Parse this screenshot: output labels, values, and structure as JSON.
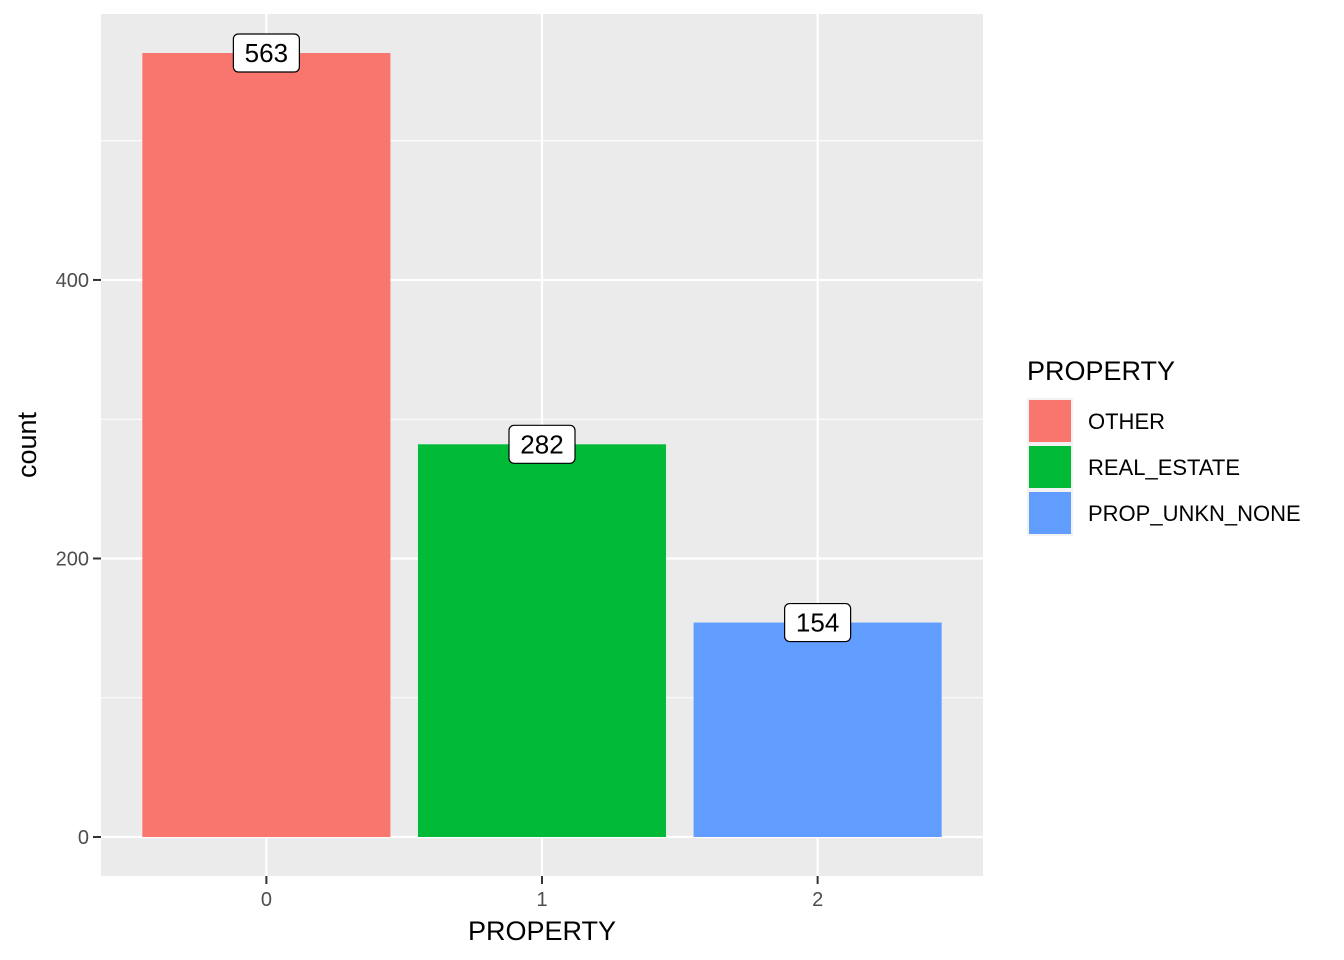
{
  "chart_data": {
    "type": "bar",
    "categories": [
      "0",
      "1",
      "2"
    ],
    "values": [
      563,
      282,
      154
    ],
    "data_labels": [
      "563",
      "282",
      "154"
    ],
    "fill_groups": [
      "OTHER",
      "REAL_ESTATE",
      "PROP_UNKN_NONE"
    ],
    "colors": [
      "#F8766D",
      "#00BA38",
      "#619CFF"
    ],
    "xlabel": "PROPERTY",
    "ylabel": "count",
    "yticks": [
      0,
      200,
      400
    ],
    "yticks_labels": [
      "0",
      "200",
      "400"
    ],
    "ylim": [
      -28,
      591
    ],
    "grid": true,
    "panel_background": "#EBEBEB",
    "legend": {
      "title": "PROPERTY",
      "position": "right",
      "entries": [
        "OTHER",
        "REAL_ESTATE",
        "PROP_UNKN_NONE"
      ]
    }
  }
}
